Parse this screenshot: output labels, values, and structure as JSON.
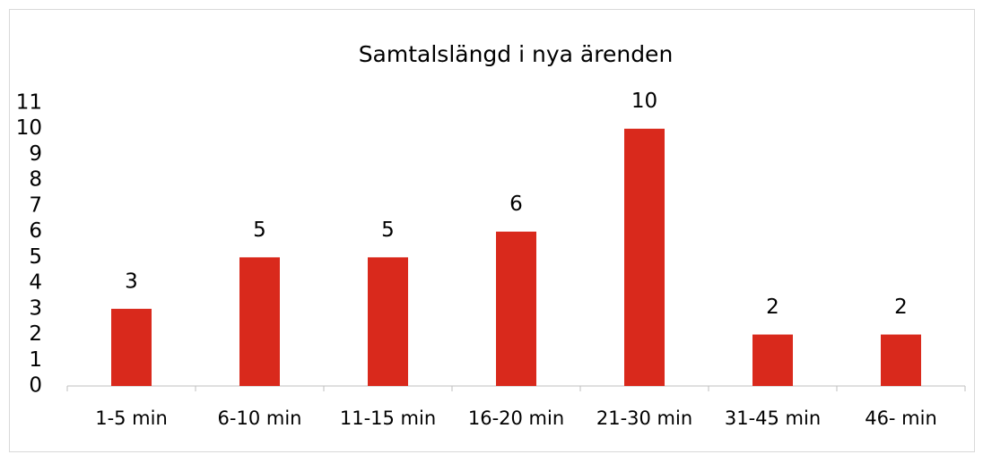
{
  "chart_data": {
    "type": "bar",
    "title": "Samtalslängd i nya ärenden",
    "categories": [
      "1-5 min",
      "6-10 min",
      "11-15 min",
      "16-20 min",
      "21-30 min",
      "31-45 min",
      "46- min"
    ],
    "values": [
      3,
      5,
      5,
      6,
      10,
      2,
      2
    ],
    "color": "#d9291c",
    "ylim": [
      0,
      11
    ],
    "yticks": [
      0,
      1,
      2,
      3,
      4,
      5,
      6,
      7,
      8,
      9,
      10,
      11
    ],
    "grid": false
  }
}
